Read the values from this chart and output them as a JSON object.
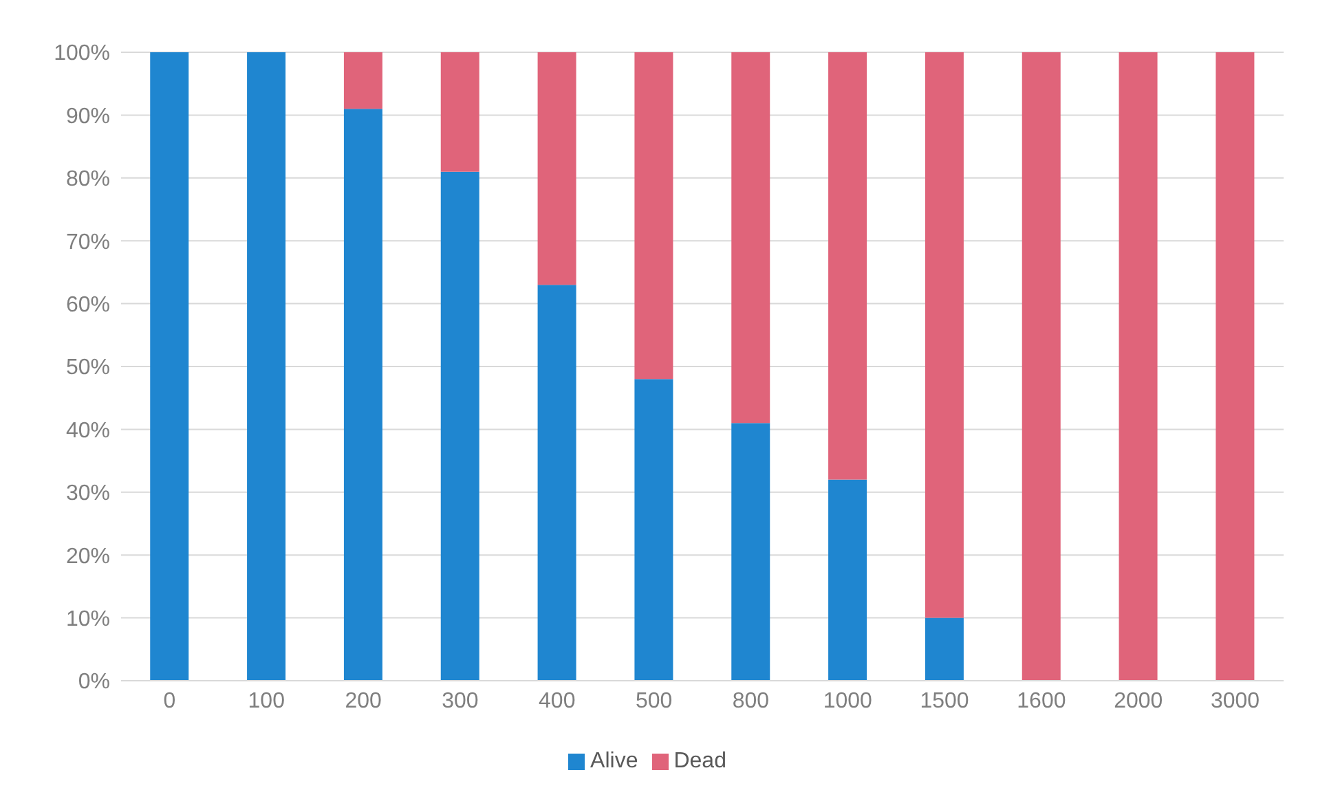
{
  "chart_data": {
    "type": "bar",
    "stacked": true,
    "categories": [
      "0",
      "100",
      "200",
      "300",
      "400",
      "500",
      "800",
      "1000",
      "1500",
      "1600",
      "2000",
      "3000"
    ],
    "series": [
      {
        "name": "Alive",
        "color": "#1f86d0",
        "values": [
          100,
          100,
          91,
          81,
          63,
          48,
          41,
          32,
          10,
          0,
          0,
          0
        ]
      },
      {
        "name": "Dead",
        "color": "#e0647a",
        "values": [
          0,
          0,
          9,
          19,
          37,
          52,
          59,
          68,
          90,
          100,
          100,
          100
        ]
      }
    ],
    "ylim": [
      0,
      100
    ],
    "yticks": [
      {
        "value": 0,
        "label": "0%"
      },
      {
        "value": 10,
        "label": "10%"
      },
      {
        "value": 20,
        "label": "20%"
      },
      {
        "value": 30,
        "label": "30%"
      },
      {
        "value": 40,
        "label": "40%"
      },
      {
        "value": 50,
        "label": "50%"
      },
      {
        "value": 60,
        "label": "60%"
      },
      {
        "value": 70,
        "label": "70%"
      },
      {
        "value": 80,
        "label": "80%"
      },
      {
        "value": 90,
        "label": "90%"
      },
      {
        "value": 100,
        "label": "100%"
      }
    ],
    "grid": "y",
    "legend": "bottom"
  }
}
